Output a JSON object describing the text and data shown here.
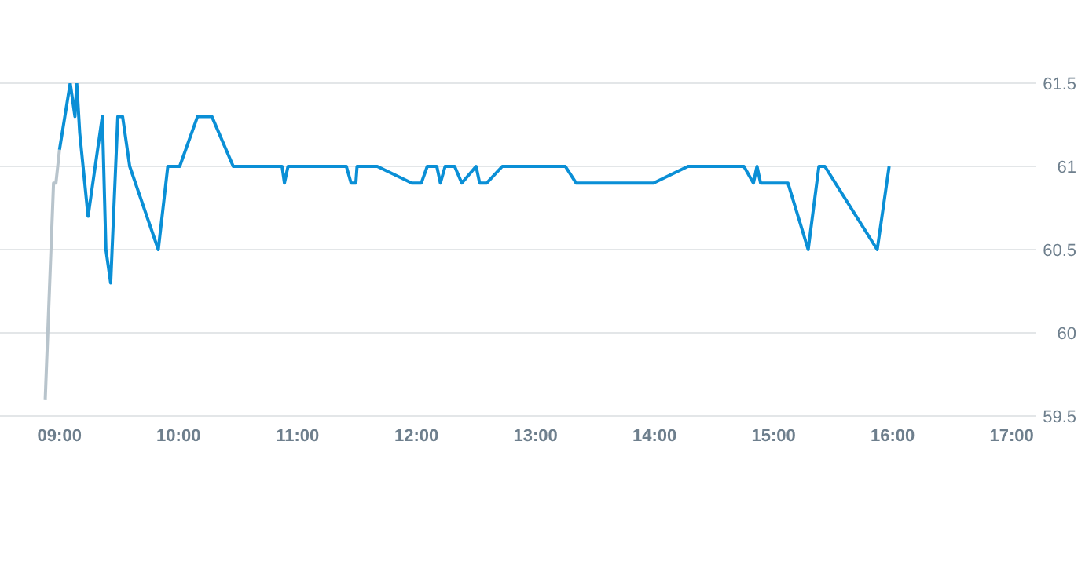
{
  "chart_data": {
    "type": "line",
    "xlim": [
      8.5,
      17.2
    ],
    "xticks": [
      {
        "value": 9,
        "label": "09:00"
      },
      {
        "value": 10,
        "label": "10:00"
      },
      {
        "value": 11,
        "label": "11:00"
      },
      {
        "value": 12,
        "label": "12:00"
      },
      {
        "value": 13,
        "label": "13:00"
      },
      {
        "value": 14,
        "label": "14:00"
      },
      {
        "value": 15,
        "label": "15:00"
      },
      {
        "value": 16,
        "label": "16:00"
      },
      {
        "value": 17,
        "label": "17:00"
      }
    ],
    "ylim": [
      59.5,
      61.5
    ],
    "yticks": [
      59.5,
      60,
      60.5,
      61,
      61.5
    ],
    "grid": "y",
    "marker": "none",
    "line_style": "solid",
    "series": [
      {
        "color": "#b8c4cc",
        "x": [
          8.88,
          8.95,
          8.97,
          9.0
        ],
        "values": [
          59.6,
          60.9,
          60.9,
          61.1
        ]
      },
      {
        "color": "#0a8fd6",
        "x": [
          9.0,
          9.09,
          9.13,
          9.145,
          9.17,
          9.24,
          9.32,
          9.36,
          9.39,
          9.43,
          9.49,
          9.53,
          9.59,
          9.83,
          9.91,
          10.01,
          10.16,
          10.28,
          10.46,
          10.87,
          10.89,
          10.92,
          11.41,
          11.45,
          11.49,
          11.5,
          11.67,
          11.96,
          12.04,
          12.09,
          12.17,
          12.2,
          12.24,
          12.32,
          12.38,
          12.5,
          12.53,
          12.59,
          12.72,
          13.25,
          13.34,
          13.99,
          14.28,
          14.75,
          14.83,
          14.86,
          14.89,
          15.12,
          15.29,
          15.38,
          15.43,
          15.87,
          15.97
        ],
        "values": [
          61.1,
          61.5,
          61.3,
          61.5,
          61.2,
          60.7,
          61.1,
          61.3,
          60.5,
          60.3,
          61.3,
          61.3,
          61.0,
          60.5,
          61.0,
          61.0,
          61.3,
          61.3,
          61.0,
          61.0,
          60.9,
          61.0,
          61.0,
          60.9,
          60.9,
          61.0,
          61.0,
          60.9,
          60.9,
          61.0,
          61.0,
          60.9,
          61.0,
          61.0,
          60.9,
          61.0,
          60.9,
          60.9,
          61.0,
          61.0,
          60.9,
          60.9,
          61.0,
          61.0,
          60.9,
          61.0,
          60.9,
          60.9,
          60.5,
          61.0,
          61.0,
          60.5,
          61.0
        ]
      }
    ]
  }
}
